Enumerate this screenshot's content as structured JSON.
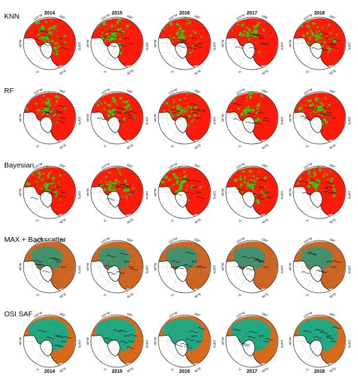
{
  "rows": [
    {
      "label": "KNN",
      "scheme": "knn"
    },
    {
      "label": "RF",
      "scheme": "rf"
    },
    {
      "label": "Bayesian",
      "scheme": "bayes"
    },
    {
      "label": "MAX + Backscatter",
      "scheme": "max"
    },
    {
      "label": "OSI SAF",
      "scheme": "osi"
    }
  ],
  "years": [
    "2014",
    "2015",
    "2016",
    "2017",
    "2018"
  ],
  "bottom_years": [
    "2014",
    "2015",
    "2016",
    "2017",
    "2018"
  ],
  "map_labels": {
    "lon_120w": "120°W",
    "lon_180": "180°",
    "lon_60w": "60°W",
    "lon_120e": "120°E",
    "lon_0": "0°",
    "lon_60e": "60°E",
    "lat_80": "80°N",
    "lat_70": "70°N"
  },
  "colors": {
    "ice_red": "#ff1a0a",
    "ice_green": "#33cc11",
    "max_orange": "#cc6622",
    "max_teal": "#2a9a7a",
    "osi_orange": "#d86a1a",
    "osi_teal": "#22a882",
    "osi_blue": "#2f5f9a",
    "land": "#ffffff",
    "coast": "#000000"
  }
}
